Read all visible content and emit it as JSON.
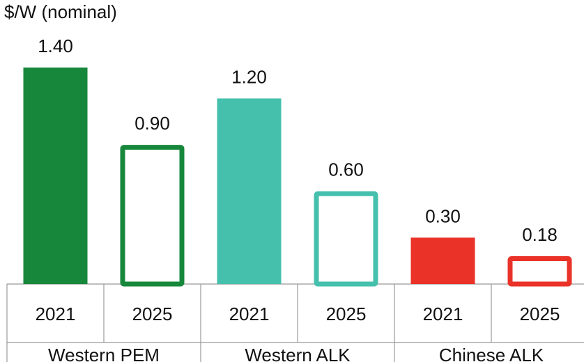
{
  "chart_data": {
    "type": "bar",
    "ylabel": "$/W (nominal)",
    "ylim": [
      0,
      1.4
    ],
    "groups": [
      {
        "name": "Western PEM",
        "color": "#16873b",
        "bars": [
          {
            "year": "2021",
            "value": 1.4,
            "label": "1.40",
            "style": "filled"
          },
          {
            "year": "2025",
            "value": 0.9,
            "label": "0.90",
            "style": "outline"
          }
        ]
      },
      {
        "name": "Western ALK",
        "color": "#45c0ad",
        "bars": [
          {
            "year": "2021",
            "value": 1.2,
            "label": "1.20",
            "style": "filled"
          },
          {
            "year": "2025",
            "value": 0.6,
            "label": "0.60",
            "style": "outline"
          }
        ]
      },
      {
        "name": "Chinese ALK",
        "color": "#ea3228",
        "bars": [
          {
            "year": "2021",
            "value": 0.3,
            "label": "0.30",
            "style": "filled"
          },
          {
            "year": "2025",
            "value": 0.18,
            "label": "0.18",
            "style": "outline"
          }
        ]
      }
    ]
  }
}
